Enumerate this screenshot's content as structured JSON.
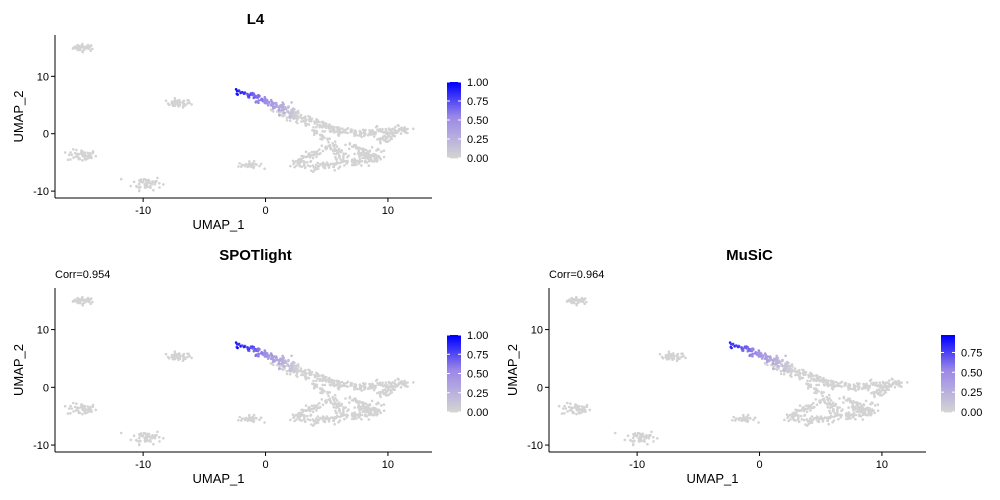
{
  "chart_data": [
    {
      "type": "scatter",
      "title": "L4",
      "subtitle": "",
      "xlabel": "UMAP_1",
      "ylabel": "UMAP_2",
      "xticks": [
        -10,
        0,
        10
      ],
      "yticks": [
        -10,
        0,
        10
      ],
      "xlim": [
        -17.2,
        13.6
      ],
      "ylim": [
        -11.2,
        17.2
      ],
      "legend": {
        "placement": "right",
        "ticks": [
          "0.00",
          "0.25",
          "0.50",
          "0.75",
          "1.00"
        ],
        "min": 0,
        "max": 1.0
      },
      "color_low": "#d3d3d3",
      "color_high": "#0000ff"
    },
    {
      "type": "scatter",
      "title": "SPOTlight",
      "subtitle": "Corr=0.954",
      "xlabel": "UMAP_1",
      "ylabel": "UMAP_2",
      "xticks": [
        -10,
        0,
        10
      ],
      "yticks": [
        -10,
        0,
        10
      ],
      "xlim": [
        -17.2,
        13.6
      ],
      "ylim": [
        -11.2,
        17.2
      ],
      "legend": {
        "placement": "right",
        "ticks": [
          "0.00",
          "0.25",
          "0.50",
          "0.75",
          "1.00"
        ],
        "min": 0,
        "max": 1.0
      },
      "color_low": "#d3d3d3",
      "color_high": "#0000ff"
    },
    {
      "type": "scatter",
      "title": "MuSiC",
      "subtitle": "Corr=0.964",
      "xlabel": "UMAP_1",
      "ylabel": "UMAP_2",
      "xticks": [
        -10,
        0,
        10
      ],
      "yticks": [
        -10,
        0,
        10
      ],
      "xlim": [
        -17.2,
        13.6
      ],
      "ylim": [
        -11.2,
        17.2
      ],
      "legend": {
        "placement": "right",
        "ticks": [
          "0.00",
          "0.25",
          "0.50",
          "0.75"
        ],
        "min": 0,
        "max": 0.97
      },
      "color_low": "#d3d3d3",
      "color_high": "#0000ff"
    }
  ]
}
